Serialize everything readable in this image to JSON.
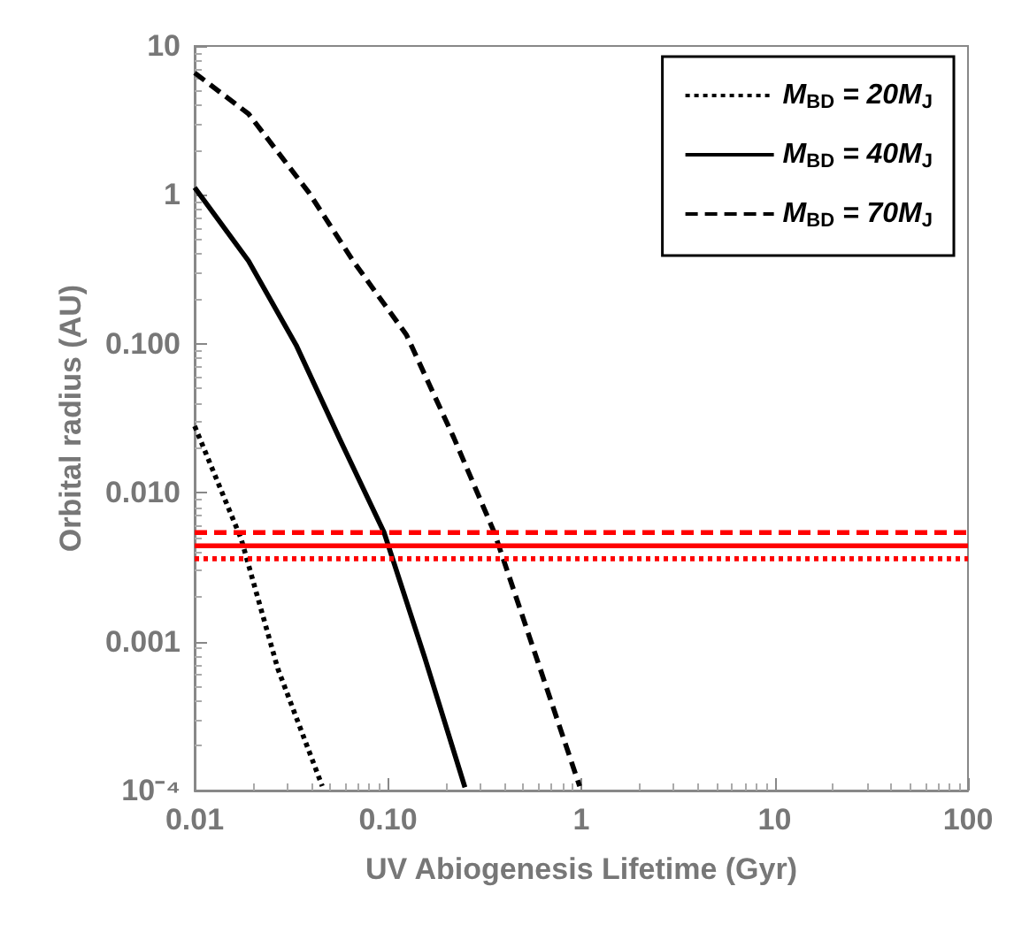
{
  "chart_data": {
    "type": "line",
    "xlabel": "UV Abiogenesis Lifetime (Gyr)",
    "ylabel": "Orbital radius (AU)",
    "log": "xy",
    "xlim": [
      0.01,
      100
    ],
    "ylim": [
      0.0001,
      10
    ],
    "xticks": [
      0.01,
      {
        "value": 0.1,
        "label": "0.10"
      },
      1,
      10,
      100
    ],
    "yticks": [
      {
        "value": 0.0001,
        "label": "10⁻⁴"
      },
      0.001,
      {
        "value": 0.01,
        "label": "0.010"
      },
      {
        "value": 0.1,
        "label": "0.100"
      },
      1,
      10
    ],
    "legend": "top right",
    "grid": false,
    "marker": "none",
    "series": [
      {
        "name": "M$_{BD}$ = 20M$_{J}$",
        "color": "#000000",
        "line_style": "dotted",
        "x": [
          0.01,
          0.0174,
          0.0269,
          0.0457
        ],
        "values": [
          0.028,
          0.0049,
          0.00066,
          0.000107
        ]
      },
      {
        "name": "M$_{BD}$ = 40M$_{J}$",
        "color": "#000000",
        "line_style": "solid",
        "x": [
          0.01,
          0.019,
          0.0335,
          0.0562,
          0.0955,
          0.155,
          0.25
        ],
        "values": [
          1.12,
          0.36,
          0.098,
          0.023,
          0.0054,
          0.00078,
          0.000105
        ]
      },
      {
        "name": "M$_{BD}$ = 70M$_{J}$",
        "color": "#000000",
        "line_style": "dashed",
        "x": [
          0.01,
          0.019,
          0.0389,
          0.066,
          0.1245,
          0.219,
          0.355,
          0.98
        ],
        "values": [
          6.6,
          3.5,
          1.04,
          0.36,
          0.115,
          0.0234,
          0.0054,
          0.000107
        ]
      }
    ],
    "ref_lines": [
      {
        "axis": "y",
        "value": 0.0054,
        "color": "#ff0000",
        "line_style": "dashed"
      },
      {
        "axis": "y",
        "value": 0.0044,
        "color": "#ff0000",
        "line_style": "solid"
      },
      {
        "axis": "y",
        "value": 0.0036,
        "color": "#ff0000",
        "line_style": "dotted"
      }
    ]
  }
}
